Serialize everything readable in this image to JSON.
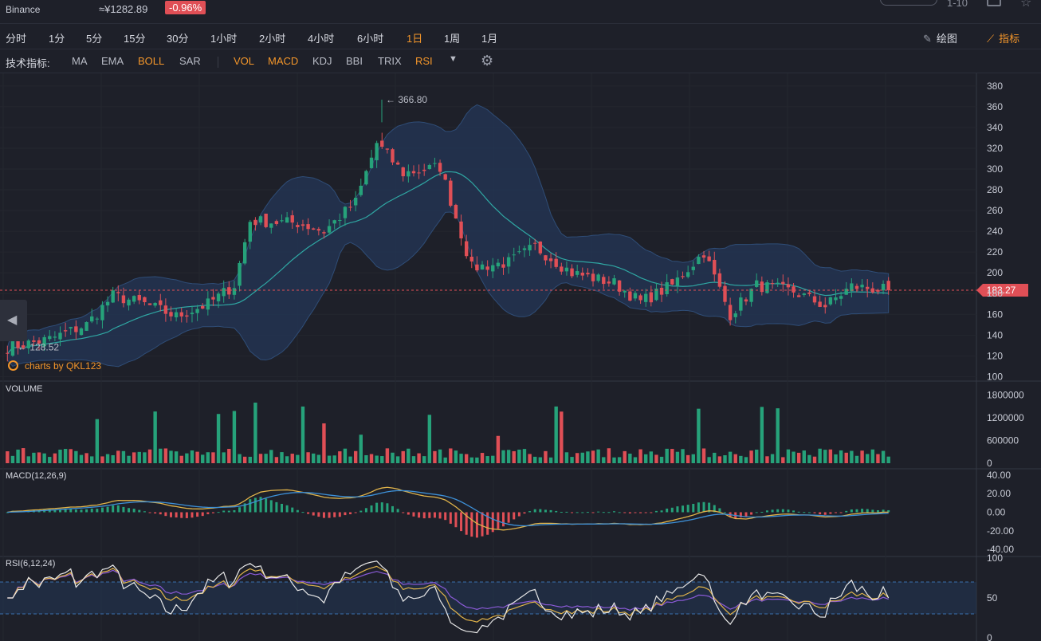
{
  "header": {
    "exchange": "Binance",
    "price": "≈¥1282.89",
    "change": "-0.96%",
    "top_right_text": "1-10"
  },
  "timeframes": [
    {
      "label": "分时",
      "active": false
    },
    {
      "label": "1分",
      "active": false
    },
    {
      "label": "5分",
      "active": false
    },
    {
      "label": "15分",
      "active": false
    },
    {
      "label": "30分",
      "active": false
    },
    {
      "label": "1小时",
      "active": false
    },
    {
      "label": "2小时",
      "active": false
    },
    {
      "label": "4小时",
      "active": false
    },
    {
      "label": "6小时",
      "active": false
    },
    {
      "label": "1日",
      "active": true
    },
    {
      "label": "1周",
      "active": false
    },
    {
      "label": "1月",
      "active": false
    }
  ],
  "tools": {
    "draw_label": "绘图",
    "indicator_label": "指标"
  },
  "indicator_bar": {
    "label": "技术指标:",
    "main": [
      {
        "label": "MA",
        "active": false
      },
      {
        "label": "EMA",
        "active": false
      },
      {
        "label": "BOLL",
        "active": true
      },
      {
        "label": "SAR",
        "active": false
      }
    ],
    "sub": [
      {
        "label": "VOL",
        "active": true
      },
      {
        "label": "MACD",
        "active": true
      },
      {
        "label": "KDJ",
        "active": false
      },
      {
        "label": "BBI",
        "active": false
      },
      {
        "label": "TRIX",
        "active": false
      },
      {
        "label": "RSI",
        "active": true
      }
    ]
  },
  "watermark": "charts by QKL123",
  "panels": {
    "volume": "VOLUME",
    "macd": "MACD(12,26,9)",
    "rsi": "RSI(6,12,24)"
  },
  "colors": {
    "up": "#26a27a",
    "down": "#e04f56",
    "accent": "#f4962a",
    "boll_band": "#24385a",
    "boll_mid": "#2fa7a3",
    "macd_dif": "#e0b34a",
    "macd_dea": "#3d8fd6",
    "rsi6": "#e8e8e8",
    "rsi12": "#e0b34a",
    "rsi24": "#8a5ad6"
  },
  "chart_data": {
    "type": "candlestick",
    "candles_count": 168,
    "price_axis": {
      "ticks": [
        380,
        360,
        340,
        320,
        300,
        280,
        260,
        240,
        220,
        200,
        180,
        160,
        140,
        120,
        100
      ],
      "range": [
        98,
        386
      ]
    },
    "last_price": "183.27",
    "max_marker": "366.80",
    "min_marker": "128.52",
    "anchors": [
      [
        0,
        128
      ],
      [
        8,
        136
      ],
      [
        15,
        150
      ],
      [
        20,
        178
      ],
      [
        26,
        170
      ],
      [
        32,
        158
      ],
      [
        38,
        170
      ],
      [
        43,
        188
      ],
      [
        46,
        250
      ],
      [
        55,
        248
      ],
      [
        60,
        240
      ],
      [
        66,
        268
      ],
      [
        70,
        325
      ],
      [
        75,
        296
      ],
      [
        82,
        302
      ],
      [
        88,
        205
      ],
      [
        95,
        210
      ],
      [
        100,
        225
      ],
      [
        107,
        200
      ],
      [
        115,
        190
      ],
      [
        120,
        172
      ],
      [
        126,
        188
      ],
      [
        132,
        220
      ],
      [
        137,
        160
      ],
      [
        142,
        188
      ],
      [
        149,
        182
      ],
      [
        155,
        168
      ],
      [
        160,
        187
      ],
      [
        167,
        183
      ]
    ],
    "volume_axis": {
      "ticks": [
        "1800000",
        "1200000",
        "600000",
        "0"
      ],
      "max": 2000000
    },
    "macd_axis": {
      "ticks": [
        "40.00",
        "20.00",
        "0.00",
        "-20.00",
        "-40.00"
      ],
      "range": [
        -45,
        45
      ]
    },
    "rsi_axis": {
      "ticks": [
        "100",
        "50",
        "0"
      ],
      "range": [
        0,
        100
      ],
      "bands": [
        30,
        70
      ]
    }
  }
}
